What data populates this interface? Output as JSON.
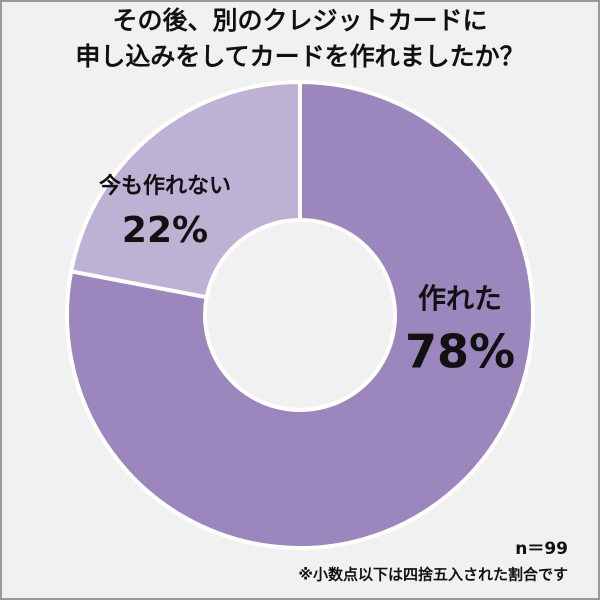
{
  "chart_data": {
    "type": "donut",
    "title": [
      "その後、別のクレジットカードに",
      "申し込みをしてカードを作れましたか？"
    ],
    "categories": [
      "作れた",
      "今も作れない"
    ],
    "values": [
      78,
      22
    ],
    "value_labels": [
      "78%",
      "22%"
    ],
    "colors": [
      "#9b87bd",
      "#bdb2d4"
    ],
    "sample_note": "n＝99",
    "footnote": "※小数点以下は四捨五入された割合です"
  }
}
